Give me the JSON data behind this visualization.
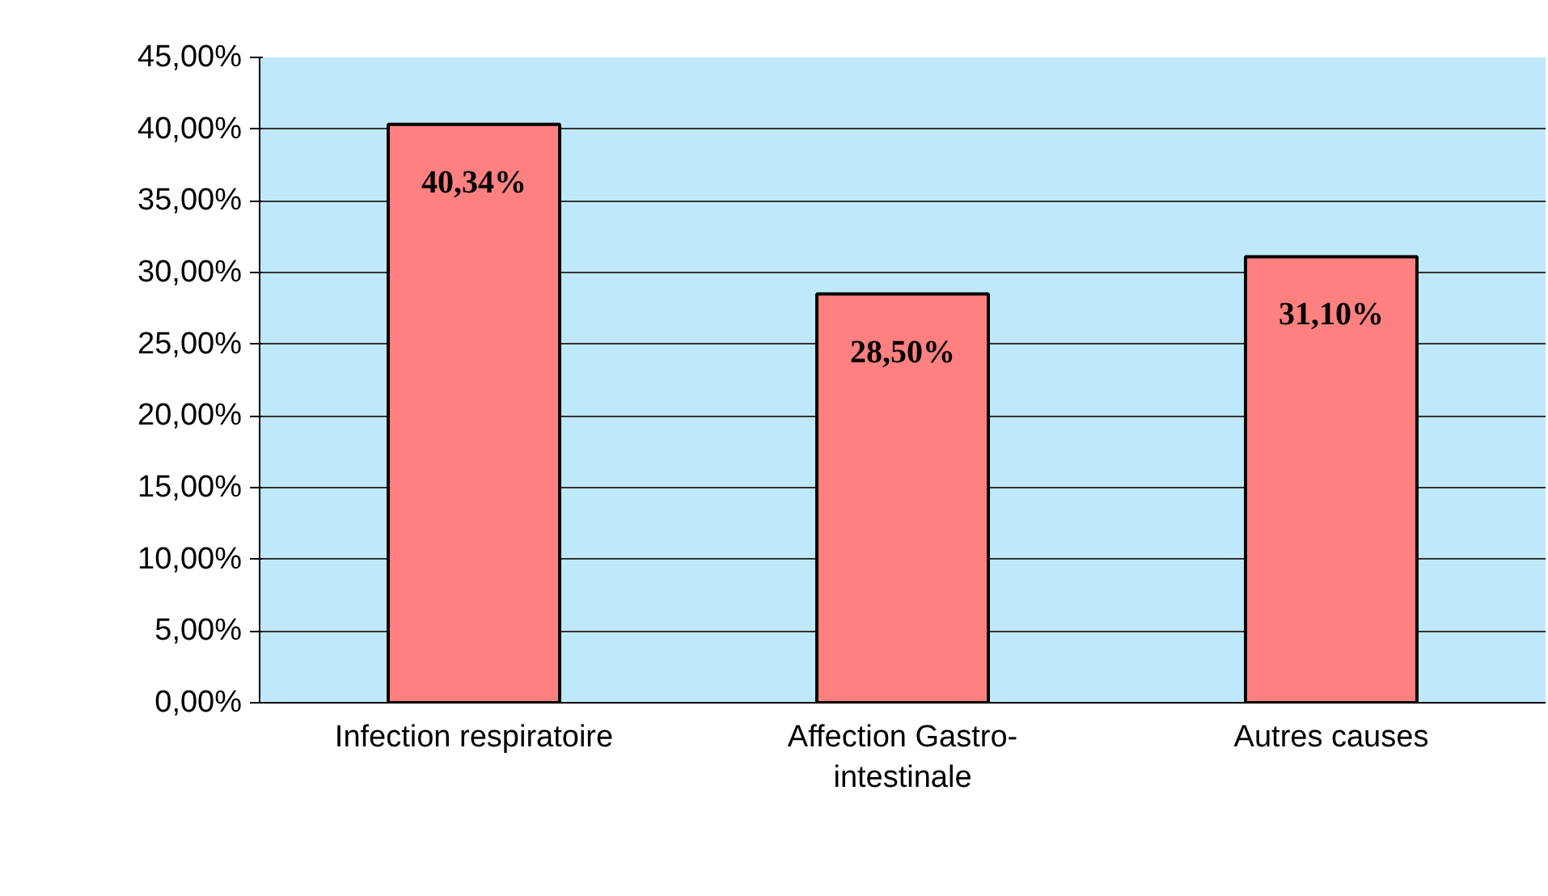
{
  "chart_data": {
    "type": "bar",
    "categories": [
      "Infection respiratoire",
      "Affection Gastro-intestinale",
      "Autres causes"
    ],
    "values": [
      40.34,
      28.5,
      31.1
    ],
    "value_labels": [
      "40,34%",
      "28,50%",
      "31,10%"
    ],
    "color": "#ff8080",
    "ylim": [
      0,
      45
    ],
    "yticks": [
      {
        "value": 0,
        "label": "0,00%"
      },
      {
        "value": 5,
        "label": "5,00%"
      },
      {
        "value": 10,
        "label": "10,00%"
      },
      {
        "value": 15,
        "label": "15,00%"
      },
      {
        "value": 20,
        "label": "20,00%"
      },
      {
        "value": 25,
        "label": "25,00%"
      },
      {
        "value": 30,
        "label": "30,00%"
      },
      {
        "value": 35,
        "label": "35,00%"
      },
      {
        "value": 40,
        "label": "40,00%"
      },
      {
        "value": 45,
        "label": "45,00%"
      }
    ],
    "grid": "y"
  }
}
